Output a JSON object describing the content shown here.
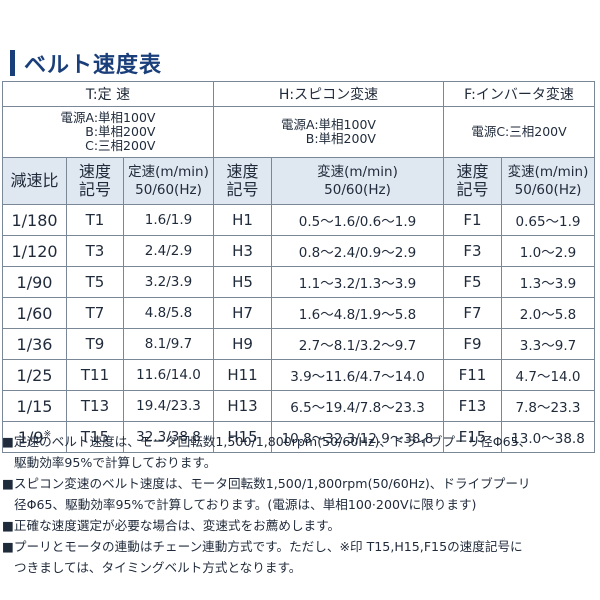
{
  "title": "ベルト速度表",
  "groups": [
    {
      "label": "T:定 速",
      "power": [
        "電源A:単相100V",
        "B:単相200V",
        "C:三相200V"
      ]
    },
    {
      "label": "H:スピコン変速",
      "power": [
        "電源A:単相100V",
        "B:単相200V"
      ]
    },
    {
      "label": "F:インバータ変速",
      "power": [
        "電源C:三相200V"
      ]
    }
  ],
  "columns": {
    "ratio": "減速比",
    "t_code": [
      "速度",
      "記号"
    ],
    "t_speed": [
      "定速(m/min)",
      "50/60(Hz)"
    ],
    "h_code": [
      "速度",
      "記号"
    ],
    "h_speed": [
      "変速(m/min)",
      "50/60(Hz)"
    ],
    "f_code": [
      "速度",
      "記号"
    ],
    "f_speed": [
      "変速(m/min)",
      "50/60(Hz)"
    ]
  },
  "rows": [
    {
      "ratio": "1/180",
      "mark": "",
      "t_code": "T1",
      "t_speed": "1.6/1.9",
      "h_code": "H1",
      "h_speed": "0.5〜1.6/0.6〜1.9",
      "f_code": "F1",
      "f_speed": "0.65〜1.9"
    },
    {
      "ratio": "1/120",
      "mark": "",
      "t_code": "T3",
      "t_speed": "2.4/2.9",
      "h_code": "H3",
      "h_speed": "0.8〜2.4/0.9〜2.9",
      "f_code": "F3",
      "f_speed": "1.0〜2.9"
    },
    {
      "ratio": "1/90",
      "mark": "",
      "t_code": "T5",
      "t_speed": "3.2/3.9",
      "h_code": "H5",
      "h_speed": "1.1〜3.2/1.3〜3.9",
      "f_code": "F5",
      "f_speed": "1.3〜3.9"
    },
    {
      "ratio": "1/60",
      "mark": "",
      "t_code": "T7",
      "t_speed": "4.8/5.8",
      "h_code": "H7",
      "h_speed": "1.6〜4.8/1.9〜5.8",
      "f_code": "F7",
      "f_speed": "2.0〜5.8"
    },
    {
      "ratio": "1/36",
      "mark": "",
      "t_code": "T9",
      "t_speed": "8.1/9.7",
      "h_code": "H9",
      "h_speed": "2.7〜8.1/3.2〜9.7",
      "f_code": "F9",
      "f_speed": "3.3〜9.7"
    },
    {
      "ratio": "1/25",
      "mark": "",
      "t_code": "T11",
      "t_speed": "11.6/14.0",
      "h_code": "H11",
      "h_speed": "3.9〜11.6/4.7〜14.0",
      "f_code": "F11",
      "f_speed": "4.7〜14.0"
    },
    {
      "ratio": "1/15",
      "mark": "",
      "t_code": "T13",
      "t_speed": "19.4/23.3",
      "h_code": "H13",
      "h_speed": "6.5〜19.4/7.8〜23.3",
      "f_code": "F13",
      "f_speed": "7.8〜23.3"
    },
    {
      "ratio": "1/9",
      "mark": "※",
      "t_code": "T15",
      "t_speed": "32.3/38.8",
      "h_code": "H15",
      "h_speed": "10.8〜32.3/12.9〜38.8",
      "f_code": "F15",
      "f_speed": "13.0〜38.8"
    }
  ],
  "notes": [
    [
      "■定速のベルト速度は、モータ回転数1,500/1,800rpm(50/60Hz)、ドライブプーリ径Φ65、",
      "駆動効率95%で計算しております。"
    ],
    [
      "■スピコン変速のベルト速度は、モータ回転数1,500/1,800rpm(50/60Hz)、ドライブプーリ",
      "径Φ65、駆動効率95%で計算しております。(電源は、単相100·200Vに限ります)"
    ],
    [
      "■正確な速度選定が必要な場合は、変速式をお薦めします。"
    ],
    [
      "■プーリとモータの連動はチェーン連動方式です。ただし、※印 T15,H15,F15の速度記号に",
      "つきましては、タイミングベルト方式となります。"
    ]
  ]
}
